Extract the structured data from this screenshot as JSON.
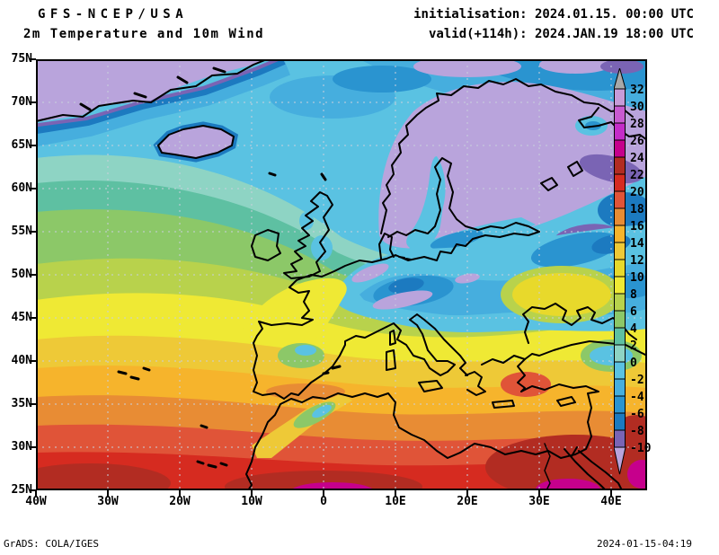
{
  "header": {
    "line1": "GFS-NCEP/USA",
    "line2": "2m Temperature and 10m Wind",
    "init": "initialisation: 2024.01.15. 00:00 UTC",
    "valid": "valid(+114h): 2024.JAN.19 18:00 UTC"
  },
  "axes": {
    "lat_labels": [
      "75N",
      "70N",
      "65N",
      "60N",
      "55N",
      "50N",
      "45N",
      "40N",
      "35N",
      "30N",
      "25N"
    ],
    "lon_labels": [
      "40W",
      "30W",
      "20W",
      "10W",
      "0",
      "10E",
      "20E",
      "30E",
      "40E"
    ]
  },
  "colorbar": {
    "labels": [
      "32",
      "30",
      "28",
      "26",
      "24",
      "22",
      "20",
      "18",
      "16",
      "14",
      "12",
      "10",
      "8",
      "6",
      "4",
      "2",
      "0",
      "-2",
      "-4",
      "-6",
      "-8",
      "-10"
    ],
    "segment_colors_top_to_bottom": [
      "#c79cd8",
      "#c85ad0",
      "#c42cc8",
      "#c6008c",
      "#b22c22",
      "#d62b20",
      "#e05438",
      "#e88c34",
      "#f6b42c",
      "#eec937",
      "#e8d92b",
      "#efe934",
      "#b8d24c",
      "#8cc868",
      "#5ec0a2",
      "#8ed4c4",
      "#5ac2e2",
      "#46aede",
      "#2a94d0",
      "#1c7ac0",
      "#7a64b4"
    ],
    "above_max_color": "#a8a8a8",
    "below_min_color": "#b9a4dc"
  },
  "footer": {
    "left": "GrADS: COLA/IGES",
    "right": "2024-01-15-04:19"
  },
  "chart_data": {
    "type": "heatmap",
    "title": "2m Temperature (deg C) shaded, valid 2024.JAN.19 18:00 UTC (+114h)",
    "x_range_lon": [
      "40W",
      "45E"
    ],
    "y_range_lat": [
      "25N",
      "75N"
    ],
    "scale_degC": [
      -10,
      -8,
      -6,
      -4,
      -2,
      0,
      2,
      4,
      6,
      8,
      10,
      12,
      14,
      16,
      18,
      20,
      22,
      24,
      26,
      28,
      30,
      32
    ],
    "regional_values_degC": {
      "greenland_iceland_scandinavia": "below -10",
      "baltic_and_northeast_europe": "-10 to -4",
      "central_europe_alps": "-10 to 0",
      "british_isles": "0 to 4",
      "western_france_black_sea": "8 to 12",
      "iberia": "6 to 12",
      "mediterranean_sea": "12 to 18",
      "north_africa_coast": "16 to 22",
      "sahara_25N_30N": "20 to 26"
    },
    "legend_position": "right",
    "grid": "dotted 10-degree lon / 5-degree lat"
  }
}
